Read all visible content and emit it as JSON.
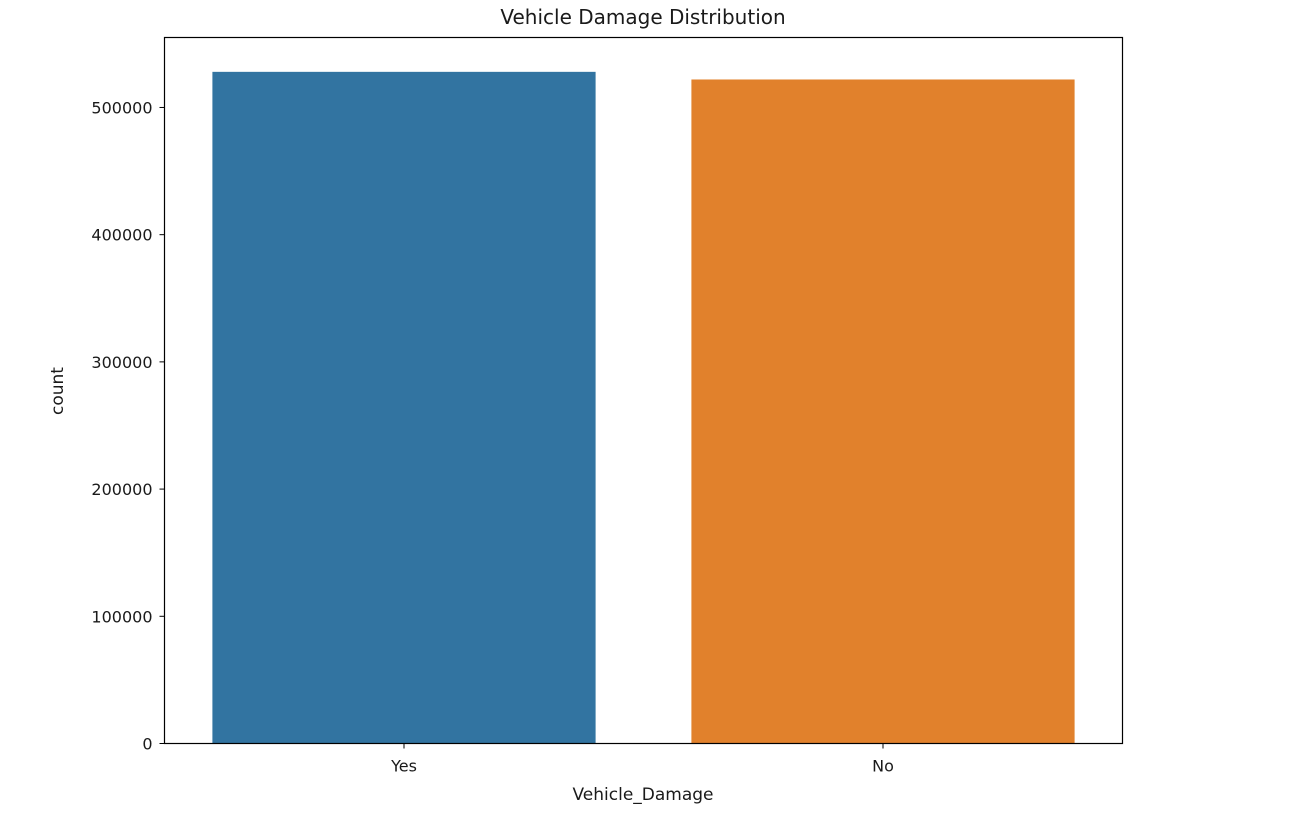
{
  "chart_data": {
    "type": "bar",
    "title": "Vehicle Damage Distribution",
    "xlabel": "Vehicle_Damage",
    "ylabel": "count",
    "categories": [
      "Yes",
      "No"
    ],
    "values": [
      528000,
      522000
    ],
    "colors": [
      "#3274a1",
      "#e1812c"
    ],
    "ylim": [
      0,
      555000
    ],
    "yticks": [
      0,
      100000,
      200000,
      300000,
      400000,
      500000
    ],
    "ytick_labels": [
      "0",
      "100000",
      "200000",
      "300000",
      "400000",
      "500000"
    ],
    "grid": false,
    "legend": "none"
  }
}
